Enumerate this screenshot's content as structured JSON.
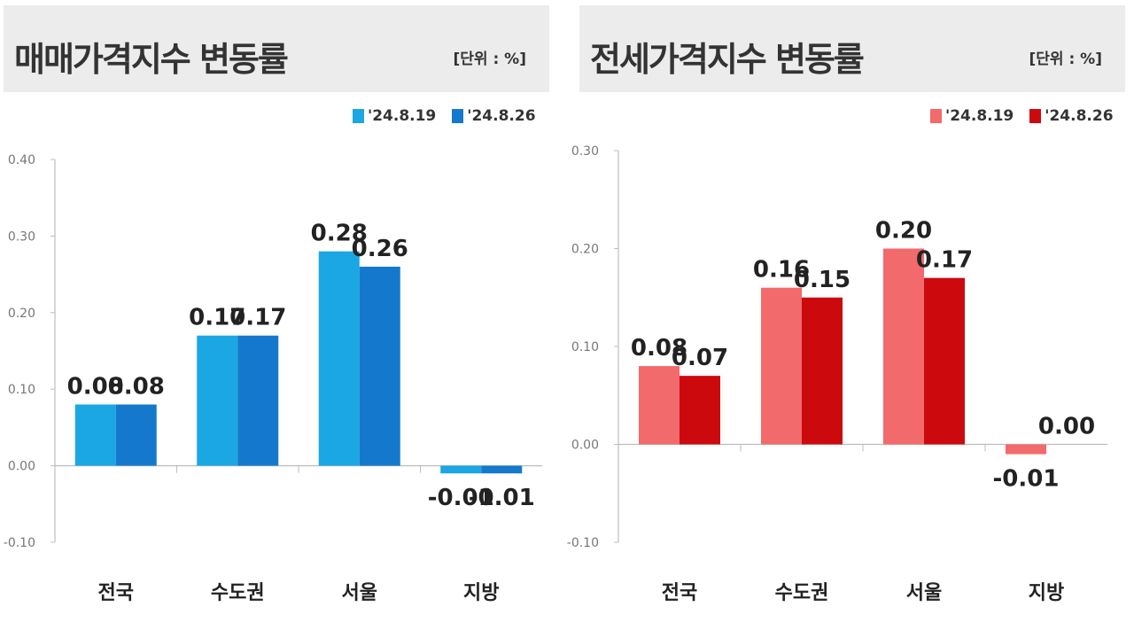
{
  "colors": {
    "sale_s1": "#1aa7e3",
    "sale_s2": "#1479cc",
    "jeonse_s1": "#f26a6c",
    "jeonse_s2": "#cc0a0e",
    "axis": "#bdbdbd",
    "header_bg": "#ececec"
  },
  "chart_data": [
    {
      "type": "bar",
      "title": "매매가격지수 변동률",
      "unit": "[단위 : %]",
      "categories": [
        "전국",
        "수도권",
        "서울",
        "지방"
      ],
      "series": [
        {
          "name": "'24.8.19",
          "values": [
            0.08,
            0.17,
            0.28,
            -0.01
          ],
          "labels": [
            "0.08",
            "0.17",
            "0.28",
            "-0.01"
          ]
        },
        {
          "name": "'24.8.26",
          "values": [
            0.08,
            0.17,
            0.26,
            -0.01
          ],
          "labels": [
            "0.08",
            "0.17",
            "0.26",
            "-0.01"
          ]
        }
      ],
      "ylim": [
        -0.1,
        0.4
      ],
      "yticks": [
        "0.40",
        "0.30",
        "0.20",
        "0.10",
        "0.00",
        "-0.10"
      ],
      "ytick_values": [
        0.4,
        0.3,
        0.2,
        0.1,
        0.0,
        -0.1
      ],
      "legend_position": "top-right",
      "grid": false
    },
    {
      "type": "bar",
      "title": "전세가격지수 변동률",
      "unit": "[단위 : %]",
      "categories": [
        "전국",
        "수도권",
        "서울",
        "지방"
      ],
      "series": [
        {
          "name": "'24.8.19",
          "values": [
            0.08,
            0.16,
            0.2,
            -0.01
          ],
          "labels": [
            "0.08",
            "0.16",
            "0.20",
            "-0.01"
          ]
        },
        {
          "name": "'24.8.26",
          "values": [
            0.07,
            0.15,
            0.17,
            0.0
          ],
          "labels": [
            "0.07",
            "0.15",
            "0.17",
            "0.00"
          ]
        }
      ],
      "ylim": [
        -0.1,
        0.3
      ],
      "yticks": [
        "0.30",
        "0.20",
        "0.10",
        "0.00",
        "-0.10"
      ],
      "ytick_values": [
        0.3,
        0.2,
        0.1,
        0.0,
        -0.1
      ],
      "legend_position": "top-right",
      "grid": false
    }
  ]
}
